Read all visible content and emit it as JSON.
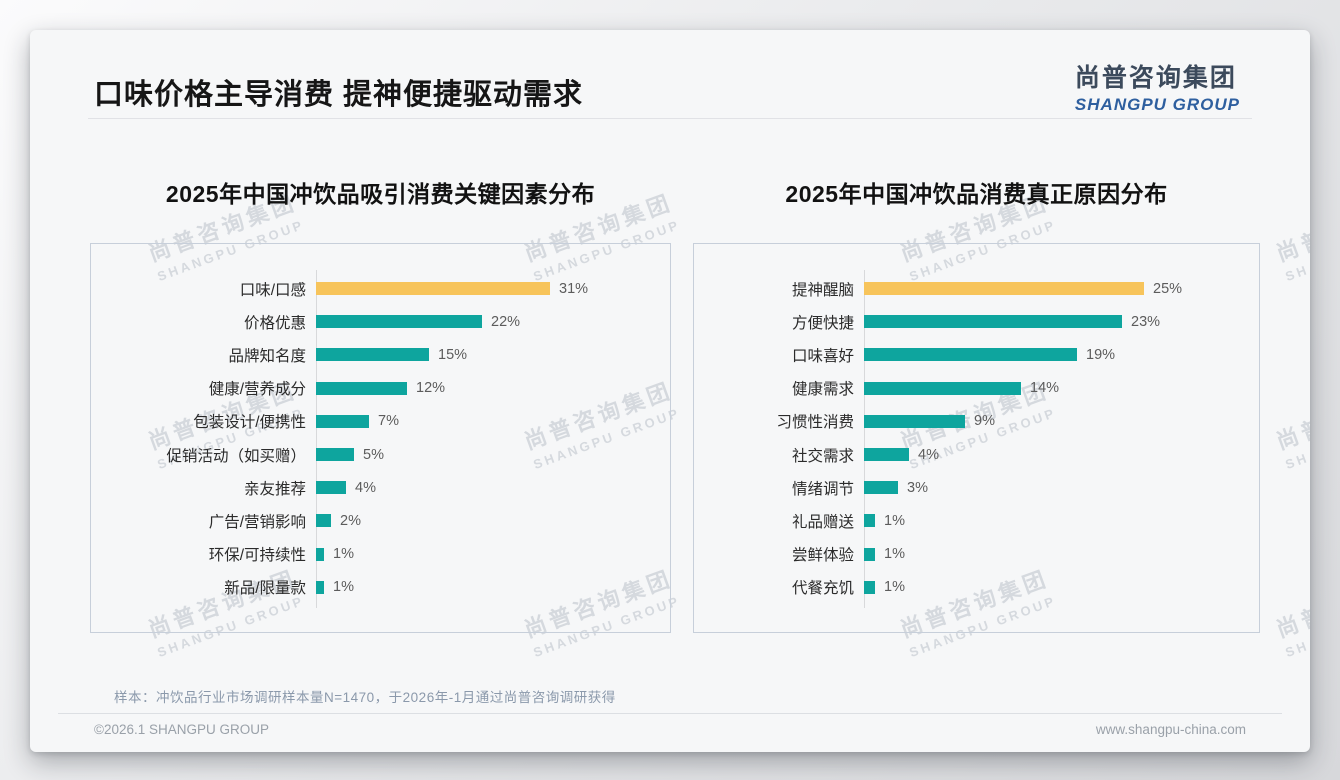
{
  "slide": {
    "title": "口味价格主导消费 提神便捷驱动需求",
    "logo": {
      "cn": "尚普咨询集团",
      "en": "SHANGPU GROUP"
    },
    "watermark": {
      "cn": "尚普咨询集团",
      "en": "SHANGPU GROUP"
    },
    "sample_note": "样本：冲饮品行业市场调研样本量N=1470，于2026年-1月通过尚普咨询调研获得",
    "footer_left": "©2026.1 SHANGPU GROUP",
    "footer_right": "www.shangpu-china.com"
  },
  "colors": {
    "bar_highlight": "#F7C45B",
    "bar_default": "#0EA59E",
    "logo_blue": "#2e5f9f",
    "panel_border": "#c7cfda"
  },
  "chart_data": [
    {
      "type": "bar",
      "orientation": "horizontal",
      "title": "2025年中国冲饮品吸引消费关键因素分布",
      "categories": [
        "口味/口感",
        "价格优惠",
        "品牌知名度",
        "健康/营养成分",
        "包装设计/便携性",
        "促销活动（如买赠）",
        "亲友推荐",
        "广告/营销影响",
        "环保/可持续性",
        "新品/限量款"
      ],
      "values": [
        31,
        22,
        15,
        12,
        7,
        5,
        4,
        2,
        1,
        1
      ],
      "unit": "%",
      "highlight_index": 0,
      "highlight_color": "#F7C45B",
      "bar_color": "#0EA59E",
      "value_labels_shown": true,
      "grid": false,
      "legend": false
    },
    {
      "type": "bar",
      "orientation": "horizontal",
      "title": "2025年中国冲饮品消费真正原因分布",
      "categories": [
        "提神醒脑",
        "方便快捷",
        "口味喜好",
        "健康需求",
        "习惯性消费",
        "社交需求",
        "情绪调节",
        "礼品赠送",
        "尝鲜体验",
        "代餐充饥"
      ],
      "values": [
        25,
        23,
        19,
        14,
        9,
        4,
        3,
        1,
        1,
        1
      ],
      "unit": "%",
      "highlight_index": 0,
      "highlight_color": "#F7C45B",
      "bar_color": "#0EA59E",
      "value_labels_shown": true,
      "grid": false,
      "legend": false
    }
  ]
}
